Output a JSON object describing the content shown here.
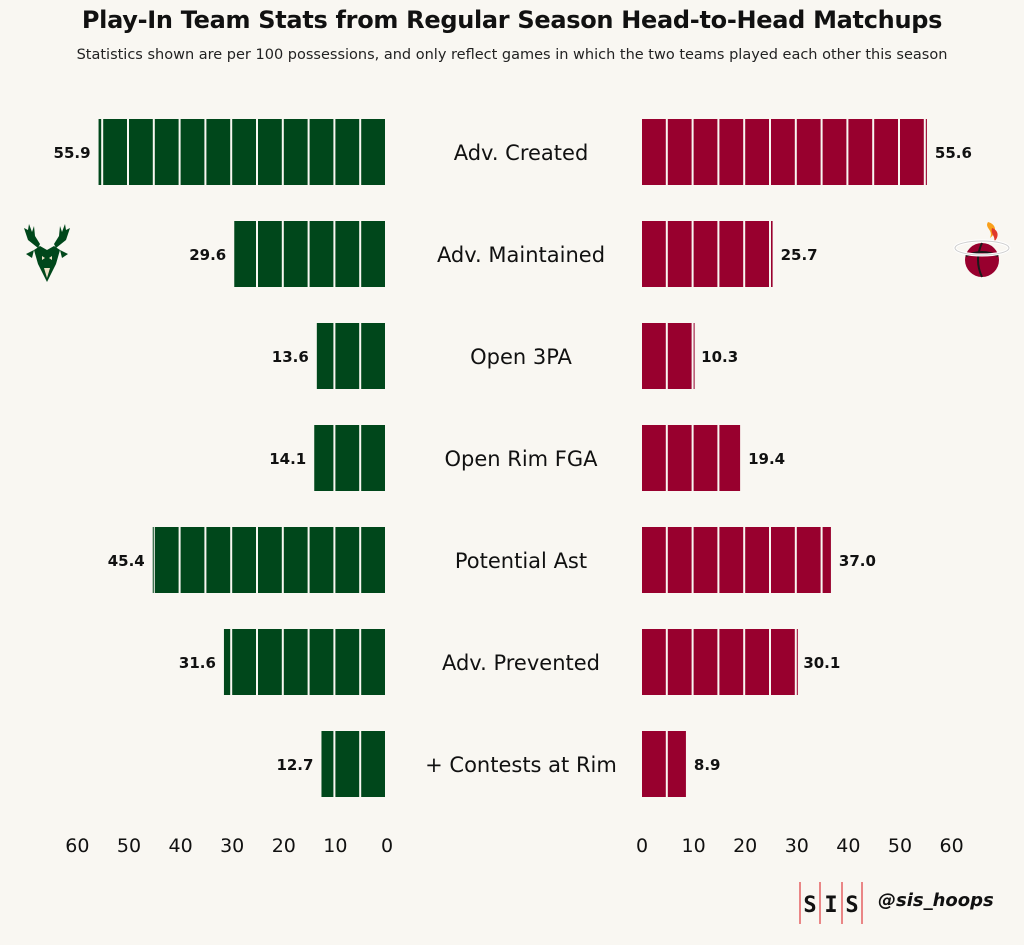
{
  "chart_data": {
    "type": "bar",
    "title": "Play-In Team Stats from Regular Season Head-to-Head Matchups",
    "subtitle": "Statistics shown are per 100 possessions, and only reflect games in which the two teams played each other this season",
    "categories": [
      "Adv. Created",
      "Adv. Maintained",
      "Open 3PA",
      "Open Rim FGA",
      "Potential Ast",
      "Adv. Prevented",
      "+ Contests at Rim"
    ],
    "series": [
      {
        "values": [
          55.9,
          29.6,
          13.6,
          14.1,
          45.4,
          31.6,
          12.7
        ],
        "color": "#00471b"
      },
      {
        "values": [
          55.6,
          25.7,
          10.3,
          19.4,
          37.0,
          30.1,
          8.9
        ],
        "color": "#98002e"
      }
    ],
    "xlim": [
      0,
      60
    ],
    "left_ticks": [
      "60",
      "50",
      "40",
      "30",
      "20",
      "10",
      "0"
    ],
    "right_ticks": [
      "0",
      "10",
      "20",
      "30",
      "40",
      "50",
      "60"
    ],
    "segment_size": 5,
    "value_labels": {
      "left": [
        "55.9",
        "29.6",
        "13.6",
        "14.1",
        "45.4",
        "31.6",
        "12.7"
      ],
      "right": [
        "55.6",
        "25.7",
        "10.3",
        "19.4",
        "37.0",
        "30.1",
        "8.9"
      ]
    }
  },
  "logos": {
    "left": "deer-head-logo",
    "right": "flaming-basketball-logo",
    "footer": "sis-logo"
  },
  "footer": {
    "sis_letters": [
      "S",
      "I",
      "S"
    ],
    "handle": "@sis_hoops"
  }
}
